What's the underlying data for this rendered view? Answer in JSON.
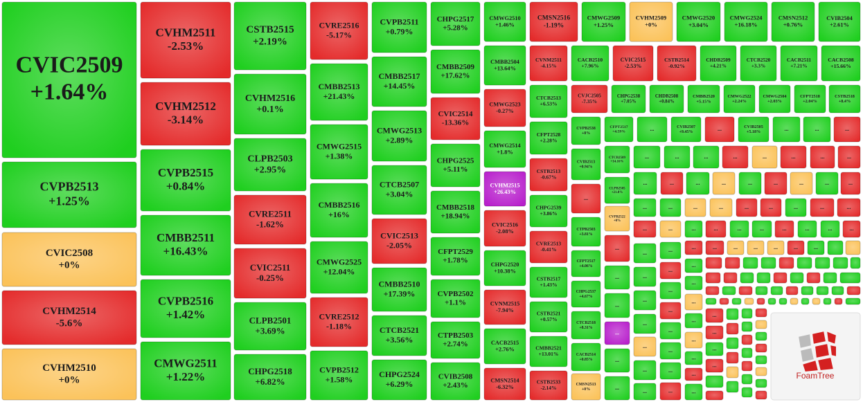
{
  "chart_data": {
    "type": "treemap",
    "categories": [
      "CVIC2509",
      "CVPB2513",
      "CVIC2508",
      "CVHM2514",
      "CVHM2510",
      "CVHM2511",
      "CVHM2512",
      "CVPB2515",
      "CMBB2511",
      "CVPB2516",
      "CMWG2511",
      "CSTB2515",
      "CVHM2516",
      "CLPB2503",
      "CVRE2511",
      "CVIC2511",
      "CLPB2501",
      "CHPG2518",
      "CVRE2516",
      "CMBB2513",
      "CMWG2515",
      "CMBB2516",
      "CMWG2525",
      "CVRE2512",
      "CVPB2512",
      "CVPB2511",
      "CMBB2517",
      "CMWG2513",
      "CTCB2507",
      "CVIC2513",
      "CMBB2510",
      "CTCB2521",
      "CHPG2524",
      "CHPG2517",
      "CMBB2509",
      "CVIC2514",
      "CHPG2525",
      "CMBB2518",
      "CFPT2529",
      "CVPB2502",
      "CTPB2503",
      "CVIB2508",
      "CMWG2510",
      "CMBB2504",
      "CMWG2523",
      "CMWG2514",
      "CVHM2515",
      "CVIC2516",
      "CHPG2520",
      "CVNM2515",
      "CACB2515",
      "CMSN2514",
      "CMSN2516",
      "CMWG2509",
      "CVHM2509",
      "CMWG2520",
      "CMWG2524",
      "CMSN2512",
      "CVIB2504",
      "CVNM2511",
      "CACB2510",
      "CVIC2515",
      "CSTB2514",
      "CHDB2509",
      "CTCB2520",
      "CACB2511",
      "CACB2508",
      "CTCB2513",
      "CFPT2528",
      "CSTB2513",
      "CHPG2539",
      "CVRE2513",
      "CSTB2517",
      "CSTB2521",
      "CMBB2521",
      "CSTB2533",
      "CVJC2505",
      "CHPG2538",
      "CHDB2508",
      "CMBB2520",
      "CMWG2522",
      "CMWG2504",
      "CFPT2518",
      "CSTB2518",
      "CVPB2538",
      "CVIB2513",
      "CTPB2503",
      "CFPT2517",
      "CHPG2537",
      "CTCB2518",
      "CACB2514",
      "CMSN2513",
      "CFPT2517",
      "CVIB2507",
      "CVIB2505",
      "CTCB2509",
      "CLPB2505",
      "CVPB2522"
    ],
    "values": [
      1.64,
      1.25,
      0,
      -5.6,
      0,
      -2.53,
      -3.14,
      0.84,
      16.43,
      1.42,
      1.22,
      2.19,
      0.1,
      2.95,
      -1.62,
      -0.25,
      3.69,
      6.82,
      -5.17,
      21.43,
      1.38,
      16,
      12.04,
      -1.18,
      1.58,
      0.79,
      14.45,
      2.89,
      3.04,
      -2.05,
      17.39,
      3.56,
      6.29,
      5.28,
      17.62,
      -13.36,
      5.11,
      18.94,
      1.78,
      1.1,
      2.74,
      2.43,
      1.46,
      13.64,
      -0.27,
      1.8,
      26.43,
      -2.08,
      10.38,
      -7.94,
      2.76,
      -6.32,
      -1.19,
      1.25,
      0,
      3.04,
      16.18,
      0.76,
      2.61,
      -4.15,
      7.96,
      -2.53,
      -0.92,
      4.21,
      3.3,
      7.21,
      15.66,
      6.53,
      2.28,
      -0.67,
      3.86,
      -0.41,
      1.43,
      0.57,
      13.01,
      -2.14,
      -7.35,
      7.05,
      0.84,
      5.15,
      2.24,
      2.03,
      2.04,
      8.4,
      8,
      0.94,
      3.81,
      4.06,
      4.67,
      8.31,
      0.85,
      0,
      4.59,
      9.45,
      5.18,
      14.16,
      21.8,
      0
    ],
    "value_labels": [
      "+1.64%",
      "+1.25%",
      "+0%",
      "-5.6%",
      "+0%",
      "-2.53%",
      "-3.14%",
      "+0.84%",
      "+16.43%",
      "+1.42%",
      "+1.22%",
      "+2.19%",
      "+0.1%",
      "+2.95%",
      "-1.62%",
      "-0.25%",
      "+3.69%",
      "+6.82%",
      "-5.17%",
      "+21.43%",
      "+1.38%",
      "+16%",
      "+12.04%",
      "-1.18%",
      "+1.58%",
      "+0.79%",
      "+14.45%",
      "+2.89%",
      "+3.04%",
      "-2.05%",
      "+17.39%",
      "+3.56%",
      "+6.29%",
      "+5.28%",
      "+17.62%",
      "-13.36%",
      "+5.11%",
      "+18.94%",
      "+1.78%",
      "+1.1%",
      "+2.74%",
      "+2.43%",
      "+1.46%",
      "+13.64%",
      "-0.27%",
      "+1.8%",
      "+26.43%",
      "-2.08%",
      "+10.38%",
      "-7.94%",
      "+2.76%",
      "-6.32%",
      "-1.19%",
      "+1.25%",
      "+0%",
      "+3.04%",
      "+16.18%",
      "+0.76%",
      "+2.61%",
      "-4.15%",
      "+7.96%",
      "-2.53%",
      "-0.92%",
      "+4.21%",
      "+3.3%",
      "+7.21%",
      "+15.66%",
      "+6.53%",
      "+2.28%",
      "-0.67%",
      "+3.86%",
      "-0.41%",
      "+1.43%",
      "+0.57%",
      "+13.01%",
      "-2.14%",
      "-7.35%",
      "+7.05%",
      "+0.84%",
      "+5.15%",
      "+2.24%",
      "+2.03%",
      "+2.04%",
      "+8.4%",
      "+8%",
      "+0.94%",
      "+3.81%",
      "+4.06%",
      "+4.67%",
      "+8.31%",
      "+0.85%",
      "+0%",
      "+4.59%",
      "+9.45%",
      "+5.18%",
      "+14.16%",
      "+21.8%",
      "+0%"
    ],
    "colors": {
      "positive": "#1fcf1f",
      "negative": "#e42b2b",
      "zero": "#fbc259",
      "strong": "#b81fcc"
    },
    "ellipsis": "...",
    "brand": "FoamTree"
  }
}
